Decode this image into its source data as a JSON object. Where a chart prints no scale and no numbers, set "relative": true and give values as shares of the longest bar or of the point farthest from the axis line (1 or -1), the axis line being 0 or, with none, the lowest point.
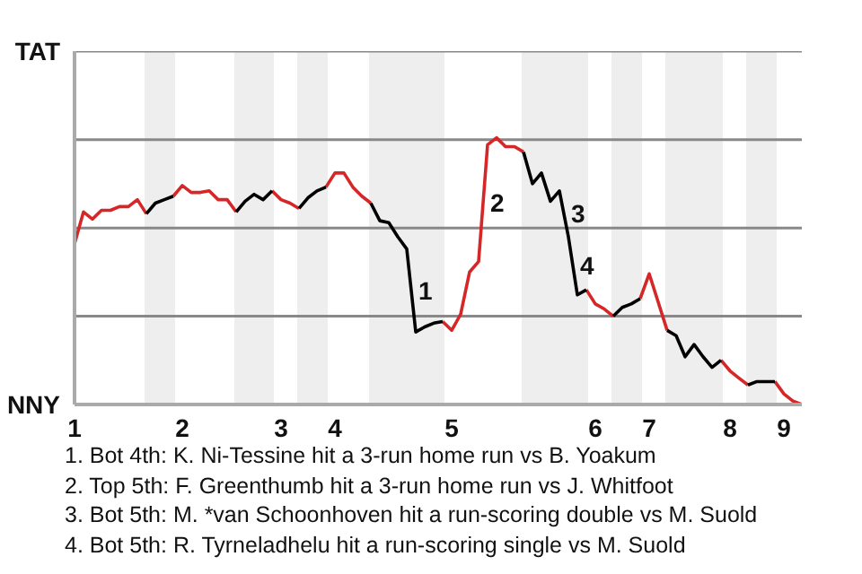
{
  "chart_data": {
    "type": "line",
    "relative": true,
    "grid": false,
    "line_style": "solid",
    "marker": "none",
    "categories": [
      "1",
      null,
      null,
      null,
      null,
      null,
      null,
      null,
      null,
      null,
      null,
      null,
      "2",
      null,
      null,
      null,
      null,
      null,
      null,
      null,
      null,
      null,
      null,
      "3",
      null,
      null,
      null,
      null,
      null,
      "4",
      null,
      null,
      null,
      null,
      null,
      null,
      null,
      null,
      null,
      null,
      null,
      null,
      "5",
      null,
      null,
      null,
      null,
      null,
      null,
      null,
      null,
      null,
      null,
      null,
      null,
      null,
      null,
      null,
      "6",
      null,
      null,
      null,
      null,
      null,
      "7",
      null,
      null,
      null,
      null,
      null,
      null,
      null,
      null,
      "8",
      null,
      null,
      null,
      null,
      null,
      "9",
      null,
      null
    ],
    "series": [
      {
        "color": "#d62728",
        "values": [
          0.603,
          0.722,
          0.695,
          0.728,
          0.728,
          0.742,
          0.742,
          0.768,
          0.715,
          null,
          null,
          0.781,
          0.821,
          0.795,
          0.795,
          0.801,
          0.768,
          0.768,
          0.722,
          null,
          null,
          null,
          0.801,
          0.768,
          0.755,
          0.735,
          null,
          null,
          0.815,
          0.868,
          0.868,
          0.815,
          0.781,
          0.755,
          null,
          null,
          null,
          null,
          null,
          null,
          null,
          0.311,
          0.278,
          0.338,
          0.497,
          0.536,
          0.974,
          1,
          0.967,
          0.967,
          0.947,
          null,
          null,
          null,
          null,
          null,
          null,
          0.43,
          0.377,
          0.358,
          0.331,
          null,
          null,
          0.397,
          0.49,
          0.384,
          0.278,
          null,
          null,
          null,
          null,
          null,
          0.166,
          0.126,
          0.099,
          0.073,
          null,
          null,
          0.086,
          0.04,
          0.013,
          0
        ]
      },
      {
        "color": "#000000",
        "values": [
          null,
          null,
          null,
          null,
          null,
          null,
          null,
          null,
          0.715,
          0.755,
          0.768,
          0.781,
          null,
          null,
          null,
          null,
          null,
          null,
          0.722,
          0.762,
          0.788,
          0.768,
          0.801,
          null,
          null,
          0.735,
          0.775,
          0.801,
          0.815,
          null,
          null,
          null,
          null,
          0.755,
          0.689,
          0.682,
          0.629,
          0.583,
          0.272,
          0.291,
          0.305,
          0.311,
          null,
          null,
          null,
          null,
          null,
          null,
          null,
          null,
          0.947,
          0.828,
          0.868,
          0.762,
          0.801,
          0.629,
          0.411,
          0.43,
          null,
          null,
          0.331,
          0.364,
          0.377,
          0.397,
          null,
          null,
          0.278,
          0.258,
          0.179,
          0.225,
          0.179,
          0.139,
          0.166,
          null,
          null,
          0.073,
          0.086,
          0.086,
          0.086,
          null,
          null,
          null
        ]
      }
    ],
    "ref_lines": [
      {
        "axis": "y",
        "value": 0.331,
        "label": null,
        "color": "#888888"
      },
      {
        "axis": "y",
        "value": 0.662,
        "label": null,
        "color": "#888888"
      },
      {
        "axis": "y",
        "value": 0.993,
        "label": null,
        "color": "#888888"
      },
      {
        "axis": "y",
        "value": 1.325,
        "label": null,
        "color": "#888888"
      }
    ],
    "annotations": [
      "TAT",
      "NNY",
      "1",
      "2",
      "3",
      "4",
      "1. Bot 4th: K. Ni-Tessine hit a 3-run home run vs B. Yoakum",
      "2. Top 5th: F. Greenthumb hit a 3-run home run vs J. Whitfoot",
      "3. Bot 5th: M. *van Schoonhoven hit a run-scoring double vs M. Suold",
      "4. Bot 5th: R. Tyrneladhelu hit a run-scoring single vs M. Suold"
    ]
  }
}
